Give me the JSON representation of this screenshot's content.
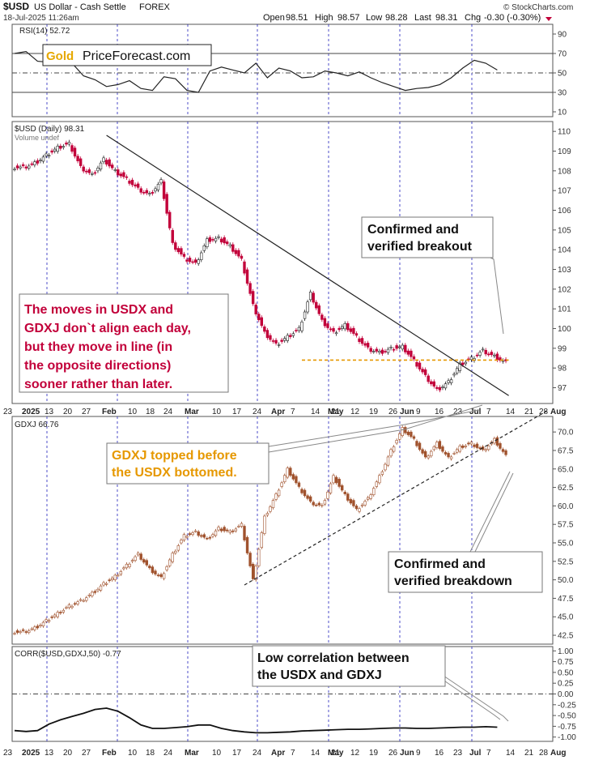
{
  "header": {
    "symbol": "$USD",
    "name": "US Dollar - Cash Settle",
    "exchange": "FOREX",
    "datetime": "18-Jul-2025 11:26am",
    "open_label": "Open",
    "open": "98.51",
    "high_label": "High",
    "high": "98.57",
    "low_label": "Low",
    "low": "98.28",
    "last_label": "Last",
    "last": "98.31",
    "chg_label": "Chg",
    "chg": "-0.30 (-0.30%)",
    "watermark": "© StockCharts.com"
  },
  "colors": {
    "up": "#222222",
    "down": "#c2003a",
    "gdxj": "#a0522d",
    "gold_line": "#e69800",
    "grid_v": "#2222bb",
    "annotation_red": "#c2003a",
    "annotation_gold": "#e69800"
  },
  "date_axis": {
    "labels_bold": [
      "2025",
      "Feb",
      "Mar",
      "Apr",
      "May",
      "Jun",
      "Jul",
      "Aug"
    ],
    "labels": [
      "23",
      "2025",
      "13",
      "20",
      "27",
      "Feb",
      "10",
      "18",
      "24",
      "Mar",
      "10",
      "17",
      "24",
      "Apr",
      "7",
      "14",
      "21",
      "May",
      "12",
      "19",
      "26",
      "Jun",
      "9",
      "16",
      "23",
      "Jul",
      "7",
      "14",
      "21",
      "28",
      "Aug"
    ]
  },
  "chart_data": [
    {
      "type": "line",
      "panel": "rsi",
      "title": "RSI(14) 52.72",
      "y_ticks": [
        10,
        30,
        50,
        70,
        90
      ],
      "ylim": [
        5,
        100
      ],
      "reference_lines": [
        30,
        50,
        70
      ],
      "x": [
        0,
        4,
        8,
        12,
        16,
        20,
        24,
        28,
        32,
        36,
        40,
        44,
        48,
        52,
        56,
        60,
        64,
        68,
        72,
        76,
        80,
        84,
        88,
        92,
        96,
        100,
        104,
        108,
        112,
        116,
        120,
        124,
        128,
        132,
        136,
        140,
        144,
        148,
        152,
        156,
        160,
        164,
        168
      ],
      "values": [
        70,
        72,
        62,
        61,
        69,
        60,
        47,
        43,
        36,
        38,
        42,
        34,
        32,
        46,
        44,
        32,
        30,
        52,
        56,
        53,
        50,
        60,
        45,
        55,
        52,
        45,
        46,
        52,
        50,
        47,
        51,
        45,
        40,
        36,
        32,
        34,
        35,
        38,
        45,
        55,
        63,
        60,
        53
      ]
    },
    {
      "type": "candlestick",
      "panel": "usd",
      "title": "$USD (Daily) 98.31",
      "subtitle": "Volume undef",
      "y_ticks": [
        97,
        98,
        99,
        100,
        101,
        102,
        103,
        104,
        105,
        106,
        107,
        108,
        109,
        110
      ],
      "ylim": [
        96.2,
        110.5
      ],
      "x": [
        0,
        4,
        8,
        12,
        16,
        20,
        24,
        28,
        32,
        36,
        40,
        44,
        48,
        52,
        56,
        60,
        64,
        68,
        72,
        76,
        80,
        84,
        88,
        92,
        96,
        100,
        104,
        108,
        112,
        116,
        120,
        124,
        128,
        132,
        136,
        140,
        144,
        148,
        152,
        156,
        160,
        164,
        168
      ],
      "values": [
        108.2,
        108.4,
        108.8,
        109.2,
        109.4,
        108.2,
        107.8,
        108.6,
        108.0,
        107.6,
        107.1,
        106.8,
        107.5,
        104.3,
        103.6,
        103.3,
        104.5,
        104.6,
        104.2,
        103.5,
        101.2,
        99.8,
        99.2,
        99.6,
        100.0,
        101.8,
        100.4,
        99.8,
        100.2,
        99.6,
        99.0,
        98.8,
        99.0,
        99.1,
        98.4,
        97.6,
        96.9,
        97.3,
        98.2,
        98.5,
        98.9,
        98.6,
        98.3
      ],
      "trendline": {
        "x": [
          32,
          172
        ],
        "values": [
          109.8,
          96.6
        ]
      },
      "support_line": {
        "x": [
          100,
          172
        ],
        "values": [
          98.4,
          98.4
        ]
      }
    },
    {
      "type": "candlestick",
      "panel": "gdxj",
      "title": "GDXJ 66.76",
      "y_ticks": [
        42.5,
        45.0,
        47.5,
        50.0,
        52.5,
        55.0,
        57.5,
        60.0,
        62.5,
        65.0,
        67.5,
        70.0
      ],
      "ylim": [
        41.3,
        72.1
      ],
      "x": [
        0,
        4,
        8,
        12,
        16,
        20,
        24,
        28,
        32,
        36,
        40,
        44,
        48,
        52,
        56,
        60,
        64,
        68,
        72,
        76,
        80,
        84,
        88,
        92,
        96,
        100,
        104,
        108,
        112,
        116,
        120,
        124,
        128,
        132,
        136,
        140,
        144,
        148,
        152,
        156,
        160,
        164,
        168
      ],
      "values": [
        43.0,
        43.5,
        44.5,
        45.5,
        46.5,
        47.2,
        48.2,
        49.5,
        50.5,
        52.0,
        53.5,
        51.5,
        50.3,
        53.5,
        56.0,
        56.5,
        55.5,
        57.0,
        56.5,
        57.5,
        50.0,
        58.5,
        61.5,
        65.0,
        62.5,
        60.5,
        60.0,
        64.0,
        61.5,
        59.5,
        61.0,
        64.0,
        67.5,
        70.5,
        69.0,
        66.5,
        68.5,
        66.5,
        68.0,
        68.5,
        67.5,
        69.0,
        66.8
      ],
      "trendline": {
        "x": [
          80,
          186
        ],
        "values": [
          49.3,
          73.0
        ]
      }
    },
    {
      "type": "line",
      "panel": "corr",
      "title": "CORR($USD,GDXJ,50) -0.77",
      "y_ticks": [
        1.0,
        0.75,
        0.5,
        0.25,
        0.0,
        -0.25,
        -0.5,
        -0.75,
        -1.0
      ],
      "ylim": [
        -1.1,
        1.1
      ],
      "reference_lines": [
        0.0
      ],
      "x": [
        0,
        4,
        8,
        12,
        16,
        20,
        24,
        28,
        32,
        36,
        40,
        44,
        48,
        52,
        56,
        60,
        64,
        68,
        72,
        76,
        80,
        84,
        88,
        92,
        96,
        100,
        104,
        108,
        112,
        116,
        120,
        124,
        128,
        132,
        136,
        140,
        144,
        148,
        152,
        156,
        160,
        164,
        168
      ],
      "values": [
        -0.85,
        -0.87,
        -0.85,
        -0.7,
        -0.6,
        -0.52,
        -0.45,
        -0.36,
        -0.33,
        -0.4,
        -0.55,
        -0.72,
        -0.8,
        -0.8,
        -0.78,
        -0.76,
        -0.72,
        -0.72,
        -0.8,
        -0.85,
        -0.88,
        -0.9,
        -0.9,
        -0.89,
        -0.88,
        -0.86,
        -0.85,
        -0.84,
        -0.83,
        -0.82,
        -0.82,
        -0.81,
        -0.8,
        -0.79,
        -0.79,
        -0.8,
        -0.8,
        -0.79,
        -0.78,
        -0.77,
        -0.77,
        -0.76,
        -0.77
      ]
    }
  ],
  "annotations": {
    "logo_prefix": "Gold",
    "logo_text": "PriceForecast.com",
    "usd_breakout": [
      "Confirmed and",
      "verified breakout"
    ],
    "moves_note": [
      "The moves in USDX and",
      "GDXJ don`t align each day,",
      "but they move in line (in",
      "the opposite directions)",
      "sooner rather than later."
    ],
    "gdxj_topped": [
      "GDXJ topped before",
      "the USDX bottomed."
    ],
    "gdxj_breakdown": [
      "Confirmed and",
      "verified breakdown"
    ],
    "low_corr": [
      "Low correlation between",
      "the USDX and GDXJ"
    ]
  }
}
